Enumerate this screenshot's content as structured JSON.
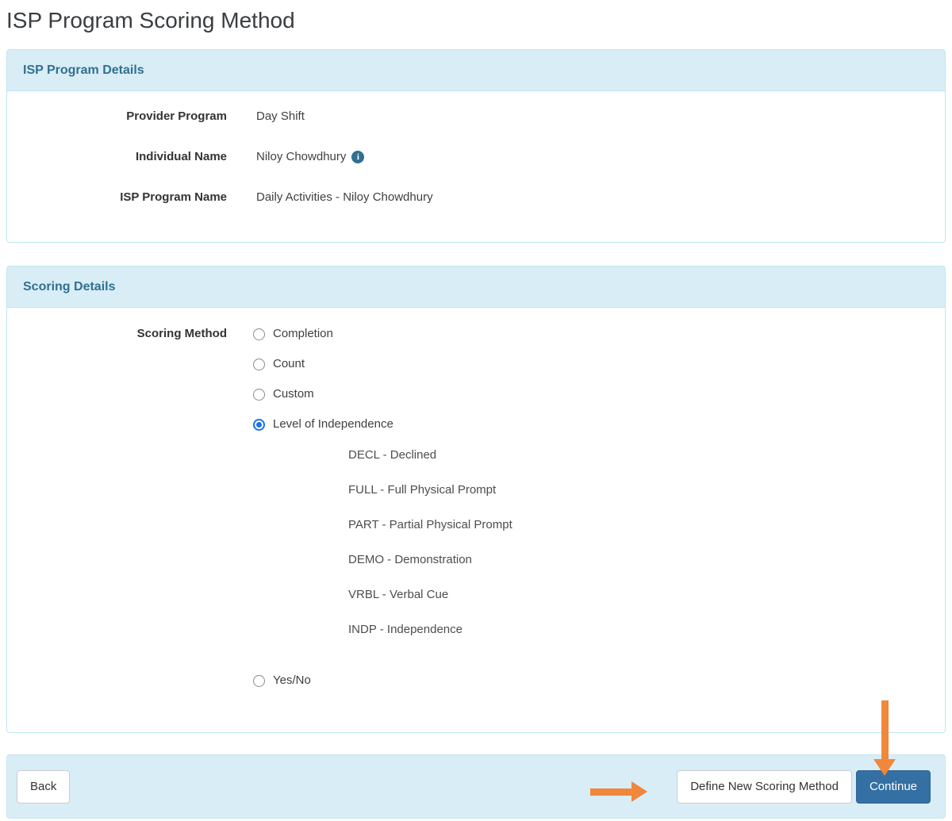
{
  "page": {
    "title": "ISP Program Scoring Method"
  },
  "panels": {
    "details": {
      "title": "ISP Program Details",
      "fields": [
        {
          "label": "Provider Program",
          "value": "Day Shift"
        },
        {
          "label": "Individual Name",
          "value": "Niloy Chowdhury",
          "icon": "info-icon",
          "icon_glyph": "i"
        },
        {
          "label": "ISP Program Name",
          "value": "Daily Activities - Niloy Chowdhury"
        }
      ]
    },
    "scoring": {
      "title": "Scoring Details",
      "field_label": "Scoring Method",
      "options": [
        {
          "label": "Completion",
          "selected": false
        },
        {
          "label": "Count",
          "selected": false
        },
        {
          "label": "Custom",
          "selected": false
        },
        {
          "label": "Level of Independence",
          "selected": true
        },
        {
          "label": "Yes/No",
          "selected": false
        }
      ],
      "level_items": [
        "DECL - Declined",
        "FULL - Full Physical Prompt",
        "PART - Partial Physical Prompt",
        "DEMO - Demonstration",
        "VRBL - Verbal Cue",
        "INDP - Independence"
      ]
    }
  },
  "footer": {
    "back_label": "Back",
    "define_label": "Define New Scoring Method",
    "continue_label": "Continue"
  },
  "colors": {
    "panel_heading_bg": "#d9edf7",
    "panel_heading_text": "#31708f",
    "panel_border": "#bce8f1",
    "primary_button": "#3470a4",
    "selected_radio": "#1a73e8",
    "annotation_arrow": "#f0873a",
    "info_icon_bg": "#31708f"
  }
}
